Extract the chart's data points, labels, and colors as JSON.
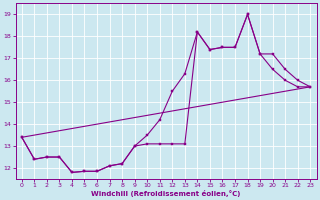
{
  "xlabel": "Windchill (Refroidissement éolien,°C)",
  "bg_color": "#cce8f0",
  "line_color": "#880088",
  "xlim": [
    -0.5,
    23.5
  ],
  "ylim": [
    11.5,
    19.5
  ],
  "yticks": [
    12,
    13,
    14,
    15,
    16,
    17,
    18,
    19
  ],
  "xticks": [
    0,
    1,
    2,
    3,
    4,
    5,
    6,
    7,
    8,
    9,
    10,
    11,
    12,
    13,
    14,
    15,
    16,
    17,
    18,
    19,
    20,
    21,
    22,
    23
  ],
  "line1_x": [
    0,
    1,
    2,
    3,
    4,
    5,
    6,
    7,
    8,
    9,
    10,
    11,
    12,
    13,
    14,
    15,
    16,
    17,
    18,
    19,
    20,
    21,
    22,
    23
  ],
  "line1_y": [
    13.4,
    12.4,
    12.5,
    12.5,
    11.8,
    11.85,
    11.85,
    12.1,
    12.2,
    13.0,
    13.1,
    13.1,
    13.1,
    13.1,
    18.2,
    17.4,
    17.5,
    17.5,
    19.0,
    17.2,
    16.5,
    16.0,
    15.7,
    15.7
  ],
  "line2_x": [
    0,
    1,
    2,
    3,
    4,
    5,
    6,
    7,
    8,
    9,
    10,
    11,
    12,
    13,
    14,
    15,
    16,
    17,
    18,
    19,
    20,
    21,
    22,
    23
  ],
  "line2_y": [
    13.4,
    12.4,
    12.5,
    12.5,
    11.8,
    11.85,
    11.85,
    12.1,
    12.2,
    13.0,
    13.5,
    14.2,
    15.5,
    16.3,
    18.2,
    17.4,
    17.5,
    17.5,
    19.0,
    17.2,
    17.2,
    16.5,
    16.0,
    15.7
  ],
  "line3_x": [
    0,
    23
  ],
  "line3_y": [
    13.4,
    15.7
  ]
}
